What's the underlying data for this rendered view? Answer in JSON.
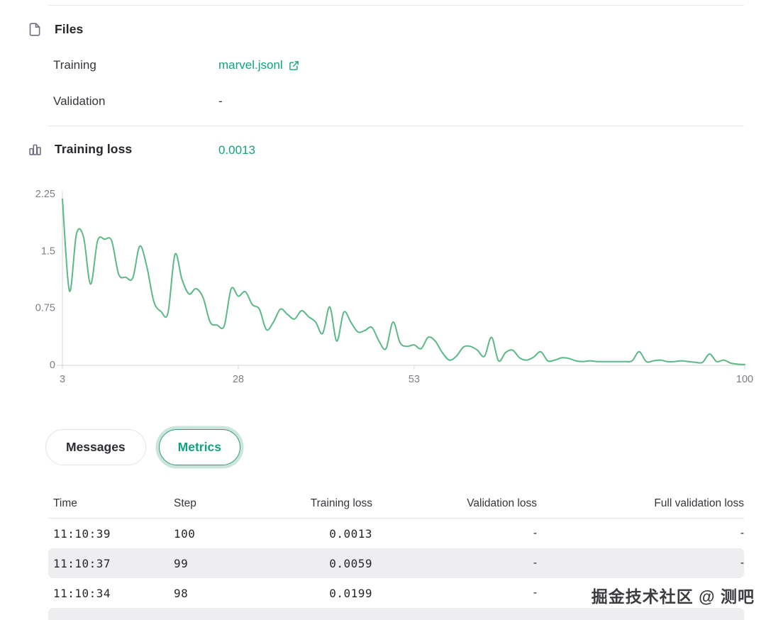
{
  "files": {
    "title": "Files",
    "training_label": "Training",
    "training_value": "marvel.jsonl",
    "validation_label": "Validation",
    "validation_value": "-"
  },
  "training_loss": {
    "title": "Training loss",
    "value": "0.0013"
  },
  "chart_data": {
    "type": "line",
    "title": "",
    "xlabel": "",
    "ylabel": "",
    "legend": "none",
    "grid": false,
    "line_color": "#5ab987",
    "axis_color": "#dcdce1",
    "tick_text_color": "#7e7e88",
    "xlim": [
      3,
      100
    ],
    "ylim": [
      0,
      2.25
    ],
    "xticks": [
      3,
      28,
      53,
      100
    ],
    "xtick_labels": [
      "3",
      "28",
      "53",
      "100"
    ],
    "yticks": [
      0,
      0.75,
      1.5,
      2.25
    ],
    "ytick_labels": [
      "0",
      "0.75",
      "1.5",
      "2.25"
    ],
    "series": [
      {
        "name": "Training loss",
        "x": [
          3,
          4,
          5,
          6,
          7,
          8,
          9,
          10,
          11,
          12,
          13,
          14,
          15,
          16,
          17,
          18,
          19,
          20,
          21,
          22,
          23,
          24,
          25,
          26,
          27,
          28,
          29,
          30,
          31,
          32,
          33,
          34,
          35,
          36,
          37,
          38,
          39,
          40,
          41,
          42,
          43,
          44,
          45,
          46,
          47,
          48,
          49,
          50,
          51,
          52,
          53,
          54,
          55,
          56,
          57,
          58,
          59,
          60,
          61,
          62,
          63,
          64,
          65,
          66,
          67,
          68,
          69,
          70,
          71,
          72,
          73,
          74,
          75,
          76,
          77,
          78,
          79,
          80,
          81,
          82,
          83,
          84,
          85,
          86,
          87,
          88,
          89,
          90,
          91,
          92,
          93,
          94,
          95,
          96,
          97,
          98,
          99,
          100
        ],
        "values": [
          2.18,
          0.97,
          1.72,
          1.68,
          1.06,
          1.63,
          1.65,
          1.63,
          1.19,
          1.15,
          1.14,
          1.56,
          1.29,
          0.83,
          0.7,
          0.68,
          1.45,
          1.12,
          0.93,
          1.0,
          0.88,
          0.56,
          0.52,
          0.51,
          1.0,
          0.9,
          0.96,
          0.79,
          0.73,
          0.46,
          0.56,
          0.73,
          0.66,
          0.6,
          0.71,
          0.63,
          0.56,
          0.41,
          0.76,
          0.31,
          0.69,
          0.56,
          0.43,
          0.45,
          0.49,
          0.31,
          0.21,
          0.56,
          0.29,
          0.24,
          0.26,
          0.21,
          0.36,
          0.31,
          0.16,
          0.06,
          0.11,
          0.23,
          0.24,
          0.19,
          0.11,
          0.36,
          0.05,
          0.16,
          0.19,
          0.09,
          0.06,
          0.1,
          0.17,
          0.05,
          0.06,
          0.09,
          0.08,
          0.05,
          0.04,
          0.05,
          0.04,
          0.04,
          0.04,
          0.04,
          0.04,
          0.05,
          0.17,
          0.04,
          0.05,
          0.06,
          0.04,
          0.04,
          0.05,
          0.04,
          0.03,
          0.03,
          0.14,
          0.04,
          0.06,
          0.0199,
          0.0059,
          0.0013
        ]
      }
    ]
  },
  "tabs": [
    {
      "label": "Messages",
      "active": false
    },
    {
      "label": "Metrics",
      "active": true
    }
  ],
  "table": {
    "columns": [
      {
        "label": "Time",
        "align": "left"
      },
      {
        "label": "Step",
        "align": "left"
      },
      {
        "label": "Training loss",
        "align": "right"
      },
      {
        "label": "Validation loss",
        "align": "right"
      },
      {
        "label": "Full validation loss",
        "align": "right"
      }
    ],
    "rows": [
      {
        "time": "11:10:39",
        "step": "100",
        "training_loss": "0.0013",
        "validation_loss": "-",
        "full_validation_loss": "-"
      },
      {
        "time": "11:10:37",
        "step": "99",
        "training_loss": "0.0059",
        "validation_loss": "-",
        "full_validation_loss": "-"
      },
      {
        "time": "11:10:34",
        "step": "98",
        "training_loss": "0.0199",
        "validation_loss": "-",
        "full_validation_loss": "-"
      }
    ]
  },
  "watermark": "掘金技术社区 @ 测吧",
  "colors": {
    "accent": "#10a37f",
    "chart_line": "#5ab987",
    "stripe": "#eeeef1",
    "divider": "#e8e8ec"
  }
}
